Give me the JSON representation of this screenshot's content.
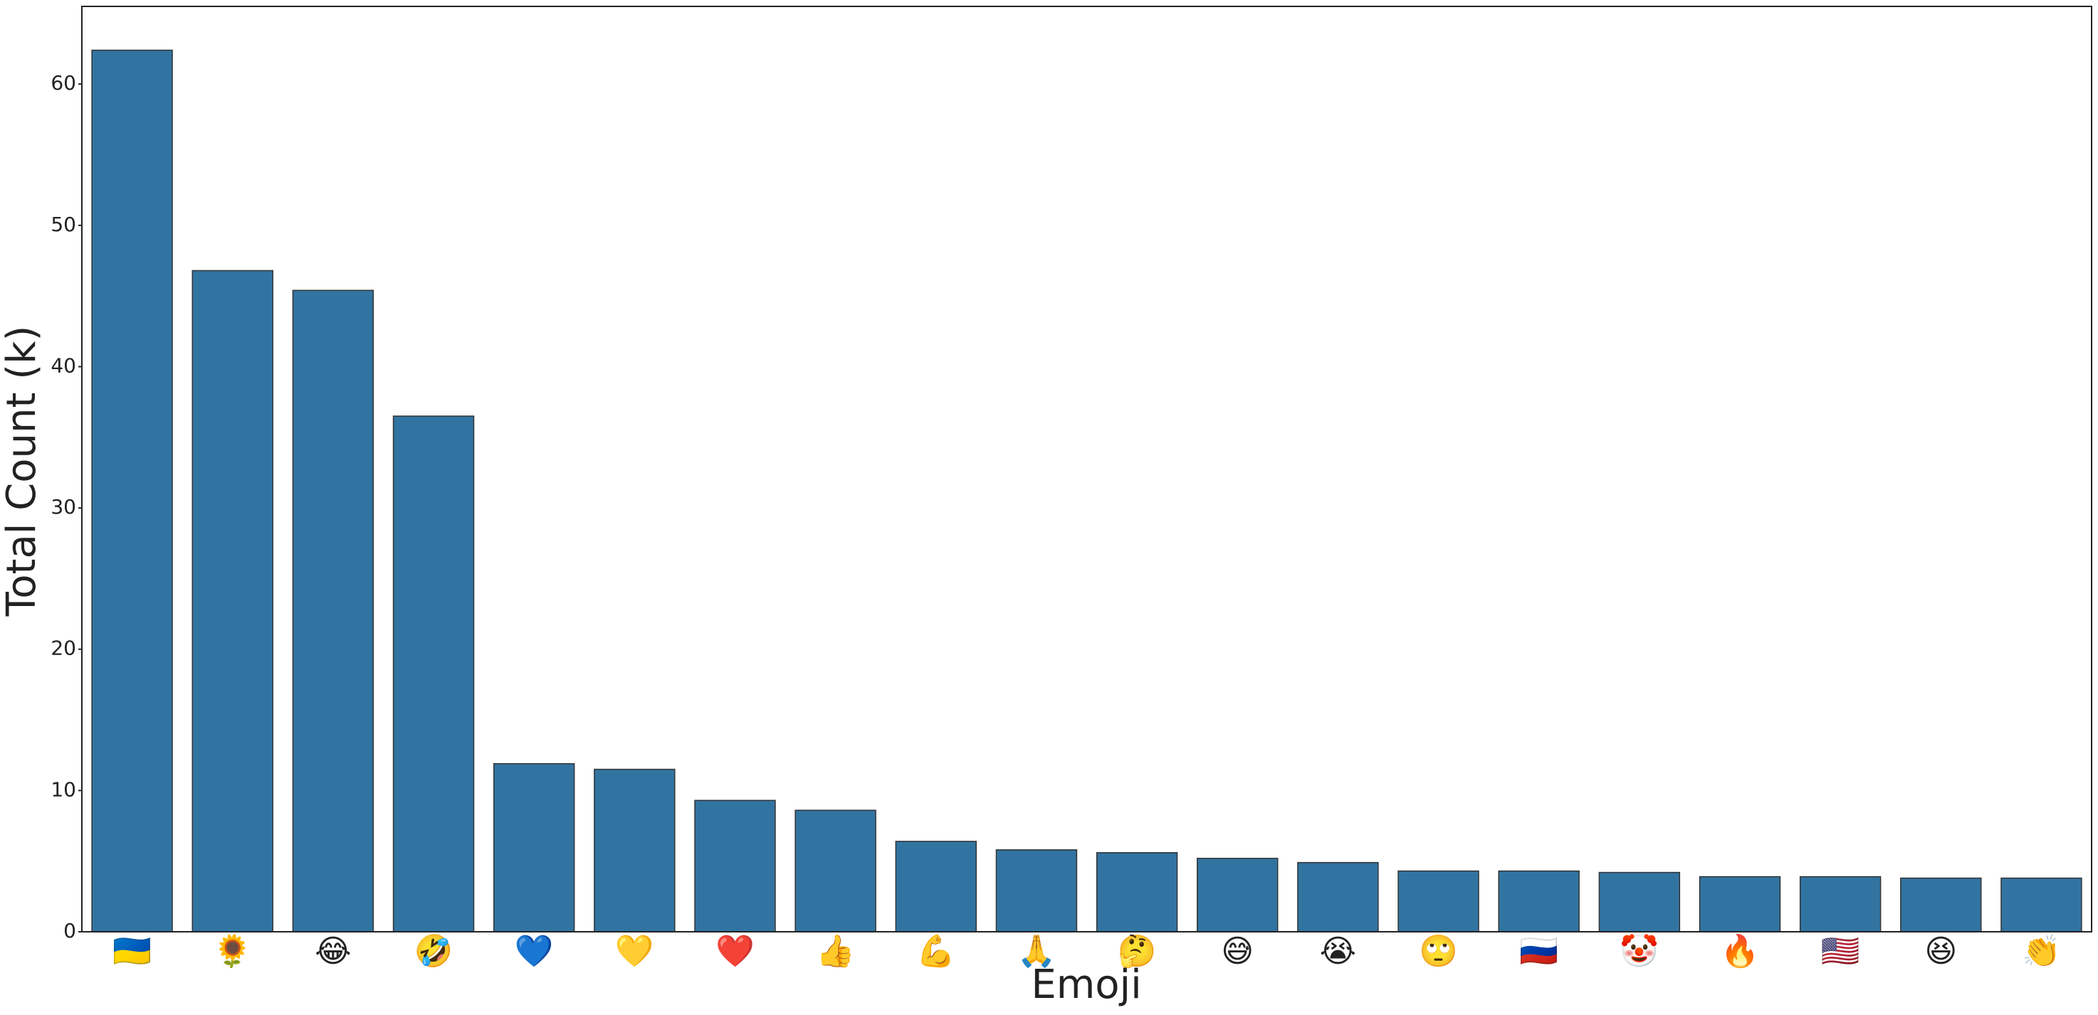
{
  "chart_data": {
    "type": "bar",
    "x_label": "Emoji",
    "y_label": "Total Count (k)",
    "categories": [
      "🇺🇦",
      "🌻",
      "😂",
      "🤣",
      "💙",
      "💛",
      "❤️",
      "👍",
      "💪",
      "🙏",
      "🤔",
      "😅",
      "😭",
      "🙄",
      "🇷🇺",
      "🤡",
      "🔥",
      "🇺🇸",
      "😆",
      "👏"
    ],
    "values": [
      62.4,
      46.8,
      45.4,
      36.5,
      11.9,
      11.5,
      9.3,
      8.6,
      6.4,
      5.8,
      5.6,
      5.2,
      4.9,
      4.3,
      4.3,
      4.2,
      3.9,
      3.9,
      3.8,
      3.8
    ],
    "color": "#3274a1",
    "ylim": [
      0,
      65.5
    ],
    "yticks": [
      0,
      10,
      20,
      30,
      40,
      50,
      60
    ],
    "grid": false
  }
}
